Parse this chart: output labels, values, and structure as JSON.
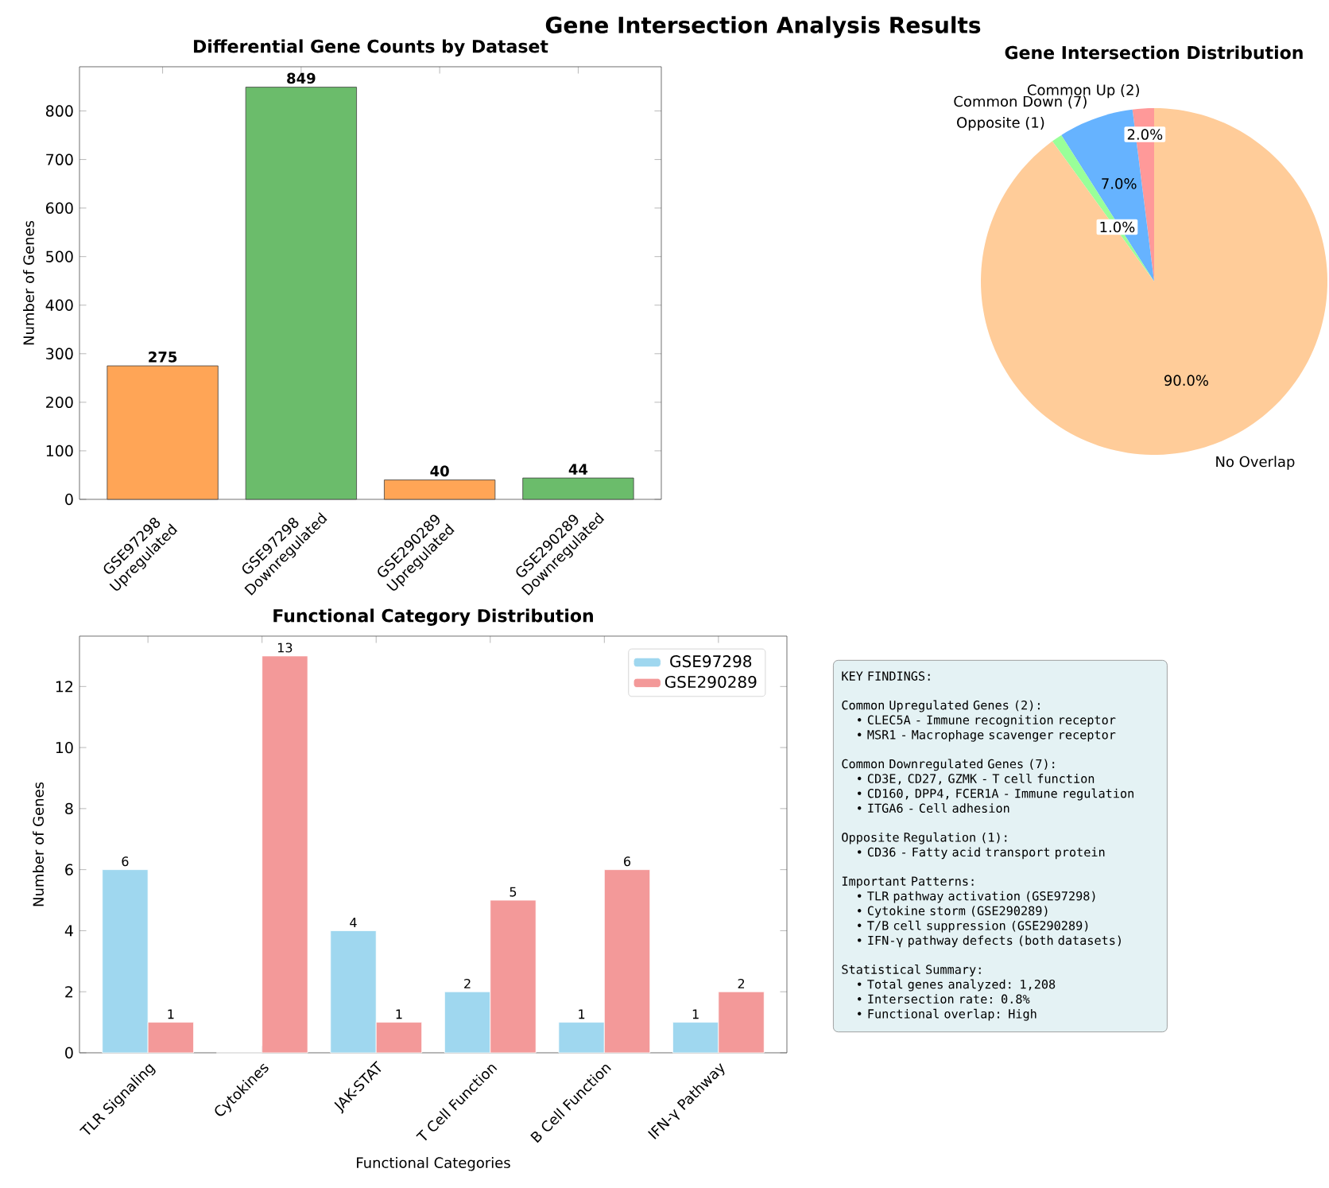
{
  "chart_data": [
    {
      "type": "bar",
      "title": "Gene Intersection Analysis Results",
      "subtitle": "Differential Gene Counts by Dataset",
      "ylabel": "Number of Genes",
      "categories": [
        "GSE97298 Upregulated",
        "GSE97298 Downregulated",
        "GSE290289 Upregulated",
        "GSE290289 Downregulated"
      ],
      "values": [
        275,
        849,
        40,
        44
      ],
      "colors": [
        "#ffa556",
        "#6bbc6b",
        "#ffa556",
        "#6bbc6b"
      ],
      "ylim": [
        0,
        891
      ],
      "yticks": [
        0,
        100,
        200,
        300,
        400,
        500,
        600,
        700,
        800
      ],
      "data_labels": true
    },
    {
      "type": "pie",
      "title": "Gene Intersection Distribution",
      "categories": [
        "Common Up (2)",
        "Common Down (7)",
        "Opposite (1)",
        "No Overlap"
      ],
      "values": [
        2,
        7,
        1,
        90
      ],
      "colors": [
        "#ff9999",
        "#66b3ff",
        "#99ff99",
        "#ffcc99"
      ],
      "value_labels": [
        "2.0%",
        "7.0%",
        "1.0%",
        "90.0%"
      ]
    },
    {
      "type": "bar",
      "title": "Functional Category Distribution",
      "xlabel": "Functional Categories",
      "ylabel": "Number of Genes",
      "categories": [
        "TLR Signaling",
        "Cytokines",
        "JAK-STAT",
        "T Cell Function",
        "B Cell Function",
        "IFN-γ Pathway"
      ],
      "series": [
        {
          "name": "GSE97298",
          "color": "#9fd7ef",
          "values": [
            6,
            0,
            4,
            2,
            1,
            1
          ],
          "value_labels": [
            "6",
            null,
            "4",
            "2",
            "1",
            "1"
          ]
        },
        {
          "name": "GSE290289",
          "color": "#f39999",
          "values": [
            1,
            13,
            1,
            5,
            6,
            2
          ],
          "value_labels": [
            "1",
            "13",
            "1",
            "5",
            "6",
            "2"
          ]
        }
      ],
      "ylim": [
        0,
        13.65
      ],
      "yticks": [
        0,
        2,
        4,
        6,
        8,
        10,
        12
      ],
      "legend": "top right"
    },
    {
      "type": "other",
      "annotations": [
        "KEY FINDINGS:",
        "Common Upregulated Genes (2):",
        "• CLEC5A - Immune recognition receptor",
        "• MSR1 - Macrophage scavenger receptor",
        "Common Downregulated Genes (7):",
        "• CD3E, CD27, GZMK - T cell function",
        "• CD160, DPP4, FCER1A - Immune regulation",
        "• ITGA6 - Cell adhesion",
        "Opposite Regulation (1):",
        "• CD36 - Fatty acid transport protein",
        "Important Patterns:",
        "• TLR pathway activation (GSE97298)",
        "• Cytokine storm (GSE290289)",
        "• T/B cell suppression (GSE290289)",
        "• IFN-γ pathway defects (both datasets)",
        "Statistical Summary:",
        "• Total genes analyzed: 1,208",
        "• Intersection rate: 0.8%",
        "• Functional overlap: High"
      ]
    }
  ]
}
